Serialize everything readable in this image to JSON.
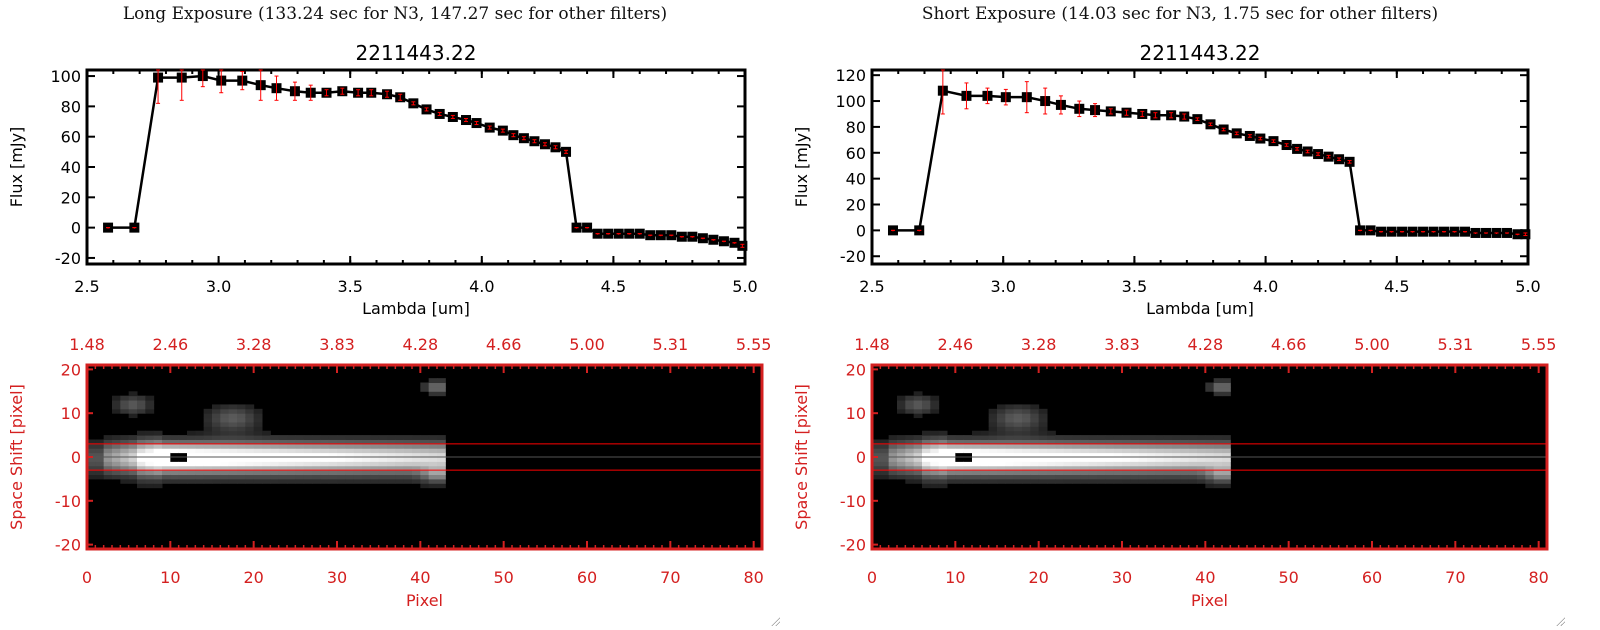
{
  "chart_data": [
    {
      "type": "line",
      "panel_title": "Long Exposure (133.24 sec for N3, 147.27 sec for other filters)",
      "title": "2211443.22",
      "xlabel": "Lambda [um]",
      "ylabel": "Flux [mJy]",
      "xlim": [
        2.5,
        5.0
      ],
      "ylim": [
        -24,
        104
      ],
      "xticks": [
        "2.5",
        "3.0",
        "3.5",
        "4.0",
        "4.5",
        "5.0"
      ],
      "xtick_values": [
        2.5,
        3.0,
        3.5,
        4.0,
        4.5,
        5.0
      ],
      "yticks": [
        "-20",
        "0",
        "20",
        "40",
        "60",
        "80",
        "100"
      ],
      "ytick_values": [
        -20,
        0,
        20,
        40,
        60,
        80,
        100
      ],
      "x": [
        2.58,
        2.68,
        2.77,
        2.86,
        2.94,
        3.01,
        3.09,
        3.16,
        3.22,
        3.29,
        3.35,
        3.41,
        3.47,
        3.53,
        3.58,
        3.64,
        3.69,
        3.74,
        3.79,
        3.84,
        3.89,
        3.94,
        3.98,
        4.03,
        4.08,
        4.12,
        4.16,
        4.2,
        4.24,
        4.28,
        4.32,
        4.36,
        4.4,
        4.44,
        4.48,
        4.52,
        4.56,
        4.6,
        4.64,
        4.68,
        4.72,
        4.76,
        4.8,
        4.84,
        4.88,
        4.92,
        4.96,
        4.99
      ],
      "y": [
        0,
        0,
        99,
        99,
        100,
        97,
        97,
        94,
        92,
        90,
        89,
        89,
        90,
        89,
        89,
        88,
        86,
        82,
        78,
        75,
        73,
        71,
        69,
        66,
        64,
        61,
        59,
        57,
        55,
        53,
        50,
        0,
        0,
        -4,
        -4,
        -4,
        -4,
        -4,
        -5,
        -5,
        -5,
        -6,
        -6,
        -7,
        -8,
        -9,
        -10,
        -12
      ],
      "yerr": [
        0,
        0,
        17,
        15,
        7,
        8,
        6,
        10,
        8,
        6,
        5,
        2,
        2,
        2,
        2,
        2,
        2,
        1,
        1,
        1,
        1,
        1,
        1,
        1,
        1,
        1,
        1,
        1,
        1,
        1,
        1,
        0,
        0,
        0,
        0,
        0,
        0,
        0,
        0,
        0,
        0,
        0,
        0,
        0,
        0,
        0,
        0,
        1
      ],
      "image": {
        "xlabel": "Pixel",
        "ylabel": "Space Shift [pixel]",
        "xticks": [
          "0",
          "10",
          "20",
          "30",
          "40",
          "50",
          "60",
          "70",
          "80"
        ],
        "xtick_values": [
          0,
          10,
          20,
          30,
          40,
          50,
          60,
          70,
          80
        ],
        "top_ticks": [
          "1.48",
          "2.46",
          "3.28",
          "3.83",
          "4.28",
          "4.66",
          "5.00",
          "5.31",
          "5.55"
        ],
        "yticks": [
          "-20",
          "-10",
          "0",
          "10",
          "20"
        ],
        "ytick_values": [
          -20,
          -10,
          0,
          10,
          20
        ],
        "xlim": [
          0,
          81
        ],
        "ylim": [
          -21,
          21
        ],
        "aperture": [
          -3,
          3
        ],
        "center": 0
      }
    },
    {
      "type": "line",
      "panel_title": "Short Exposure (14.03 sec for N3, 1.75 sec for other filters)",
      "title": "2211443.22",
      "xlabel": "Lambda [um]",
      "ylabel": "Flux [mJy]",
      "xlim": [
        2.5,
        5.0
      ],
      "ylim": [
        -26,
        124
      ],
      "xticks": [
        "2.5",
        "3.0",
        "3.5",
        "4.0",
        "4.5",
        "5.0"
      ],
      "xtick_values": [
        2.5,
        3.0,
        3.5,
        4.0,
        4.5,
        5.0
      ],
      "yticks": [
        "-20",
        "0",
        "20",
        "40",
        "60",
        "80",
        "100",
        "120"
      ],
      "ytick_values": [
        -20,
        0,
        20,
        40,
        60,
        80,
        100,
        120
      ],
      "x": [
        2.58,
        2.68,
        2.77,
        2.86,
        2.94,
        3.01,
        3.09,
        3.16,
        3.22,
        3.29,
        3.35,
        3.41,
        3.47,
        3.53,
        3.58,
        3.64,
        3.69,
        3.74,
        3.79,
        3.84,
        3.89,
        3.94,
        3.98,
        4.03,
        4.08,
        4.12,
        4.16,
        4.2,
        4.24,
        4.28,
        4.32,
        4.36,
        4.4,
        4.44,
        4.48,
        4.52,
        4.56,
        4.6,
        4.64,
        4.68,
        4.72,
        4.76,
        4.8,
        4.84,
        4.88,
        4.92,
        4.96,
        4.99
      ],
      "y": [
        0,
        0,
        108,
        104,
        104,
        103,
        103,
        100,
        97,
        94,
        93,
        92,
        91,
        90,
        89,
        89,
        88,
        86,
        82,
        78,
        75,
        73,
        71,
        69,
        66,
        63,
        61,
        59,
        57,
        55,
        53,
        0,
        0,
        -1,
        -1,
        -1,
        -1,
        -1,
        -1,
        -1,
        -1,
        -1,
        -2,
        -2,
        -2,
        -2,
        -3,
        -3
      ],
      "yerr": [
        0,
        0,
        18,
        10,
        6,
        6,
        12,
        10,
        7,
        6,
        5,
        2,
        2,
        2,
        2,
        2,
        2,
        1,
        1,
        1,
        1,
        1,
        1,
        1,
        1,
        1,
        1,
        1,
        1,
        1,
        1,
        0,
        0,
        0,
        0,
        0,
        0,
        0,
        0,
        0,
        0,
        0,
        0,
        0,
        0,
        0,
        0,
        1
      ],
      "image": {
        "xlabel": "Pixel",
        "ylabel": "Space Shift [pixel]",
        "xticks": [
          "0",
          "10",
          "20",
          "30",
          "40",
          "50",
          "60",
          "70",
          "80"
        ],
        "xtick_values": [
          0,
          10,
          20,
          30,
          40,
          50,
          60,
          70,
          80
        ],
        "top_ticks": [
          "1.48",
          "2.46",
          "3.28",
          "3.83",
          "4.28",
          "4.66",
          "5.00",
          "5.31",
          "5.55"
        ],
        "yticks": [
          "-20",
          "-10",
          "0",
          "10",
          "20"
        ],
        "ytick_values": [
          -20,
          -10,
          0,
          10,
          20
        ],
        "xlim": [
          0,
          81
        ],
        "ylim": [
          -21,
          21
        ],
        "aperture": [
          -3,
          3
        ],
        "center": 0
      }
    }
  ],
  "colors": {
    "axis": "#000000",
    "image_axis": "#d42020",
    "errorbar": "#ff0000",
    "marker": "#000000"
  }
}
